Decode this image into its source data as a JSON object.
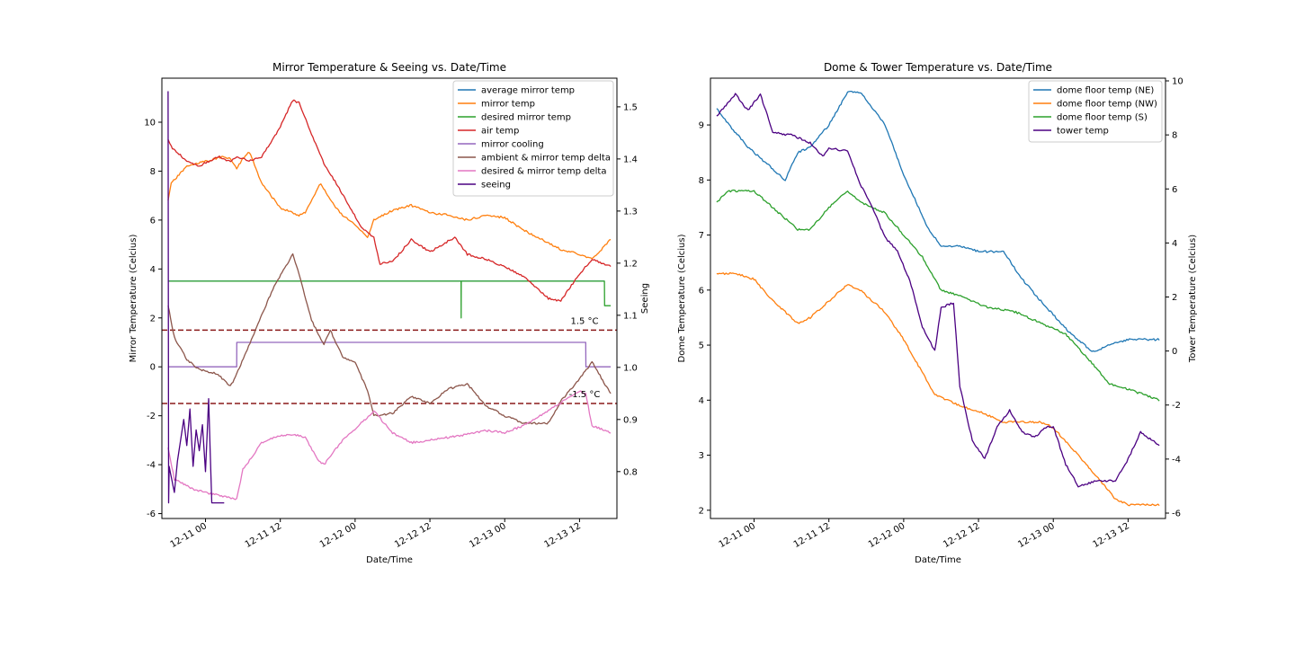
{
  "chart_data": [
    {
      "type": "line",
      "title": "Mirror Temperature & Seeing vs. Date/Time",
      "xlabel": "Date/Time",
      "ylabel": "Mirror Temperature (Celcius)",
      "y2label": "Seeing",
      "x_ticks": [
        "12-11 00",
        "12-11 12",
        "12-12 00",
        "12-12 12",
        "12-13 00",
        "12-13 12"
      ],
      "x_range": [
        "2022-12-10 17:00",
        "2022-12-13 18:00"
      ],
      "ylim": [
        -6.2,
        11.8
      ],
      "y_ticks": [
        -6,
        -4,
        -2,
        0,
        2,
        4,
        6,
        8,
        10
      ],
      "y2lim": [
        0.71,
        1.555
      ],
      "y2_ticks": [
        0.8,
        0.9,
        1.0,
        1.1,
        1.2,
        1.3,
        1.4,
        1.5
      ],
      "legend_position": "top-right",
      "series": [
        {
          "name": "average mirror temp",
          "color": "#1f77b4",
          "axis": "left",
          "x": [
            "2022-12-10 18:00",
            "2022-12-13 16:00"
          ],
          "y": [
            3.5,
            3.5
          ]
        },
        {
          "name": "mirror temp",
          "color": "#ff7f0e",
          "axis": "left",
          "x": [
            "2022-12-10 18:00",
            "2022-12-10 18:30",
            "2022-12-10 21:00",
            "2022-12-11 00:00",
            "2022-12-11 03:00",
            "2022-12-11 04:00",
            "2022-12-11 05:00",
            "2022-12-11 06:00",
            "2022-12-11 07:00",
            "2022-12-11 09:00",
            "2022-12-11 12:00",
            "2022-12-11 15:00",
            "2022-12-11 16:00",
            "2022-12-11 18:00",
            "2022-12-11 18:30",
            "2022-12-11 20:00",
            "2022-12-11 22:00",
            "2022-12-12 00:00",
            "2022-12-12 02:00",
            "2022-12-12 03:00",
            "2022-12-12 06:00",
            "2022-12-12 09:00",
            "2022-12-12 12:00",
            "2022-12-12 15:00",
            "2022-12-12 18:00",
            "2022-12-12 21:00",
            "2022-12-13 00:00",
            "2022-12-13 03:00",
            "2022-12-13 06:00",
            "2022-12-13 09:00",
            "2022-12-13 12:00",
            "2022-12-13 14:00",
            "2022-12-13 17:00"
          ],
          "y": [
            6.8,
            7.5,
            8.2,
            8.4,
            8.6,
            8.5,
            8.1,
            8.5,
            8.8,
            7.5,
            6.5,
            6.2,
            6.3,
            7.3,
            7.5,
            6.8,
            6.2,
            5.8,
            5.3,
            6.0,
            6.4,
            6.6,
            6.3,
            6.2,
            6.0,
            6.2,
            6.1,
            5.6,
            5.2,
            4.8,
            4.6,
            4.4,
            5.2
          ]
        },
        {
          "name": "desired mirror temp",
          "color": "#2ca02c",
          "axis": "left",
          "x": [
            "2022-12-10 18:00",
            "2022-12-12 17:00",
            "2022-12-12 17:01",
            "2022-12-12 17:02",
            "2022-12-13 16:00",
            "2022-12-13 16:01",
            "2022-12-13 17:00"
          ],
          "y": [
            3.5,
            3.5,
            2.0,
            3.5,
            3.5,
            2.5,
            2.5
          ]
        },
        {
          "name": "air temp",
          "color": "#d62728",
          "axis": "left",
          "x": [
            "2022-12-10 18:00",
            "2022-12-10 18:30",
            "2022-12-10 21:00",
            "2022-12-10 23:00",
            "2022-12-11 02:00",
            "2022-12-11 04:00",
            "2022-12-11 05:00",
            "2022-12-11 07:00",
            "2022-12-11 09:00",
            "2022-12-11 12:00",
            "2022-12-11 14:00",
            "2022-12-11 15:00",
            "2022-12-11 17:00",
            "2022-12-11 19:00",
            "2022-12-11 21:00",
            "2022-12-11 23:00",
            "2022-12-12 01:00",
            "2022-12-12 03:00",
            "2022-12-12 04:00",
            "2022-12-12 06:00",
            "2022-12-12 09:00",
            "2022-12-12 12:00",
            "2022-12-12 16:00",
            "2022-12-12 18:00",
            "2022-12-12 21:00",
            "2022-12-13 00:00",
            "2022-12-13 03:00",
            "2022-12-13 07:00",
            "2022-12-13 09:00",
            "2022-12-13 12:00",
            "2022-12-13 14:00",
            "2022-12-13 17:00"
          ],
          "y": [
            9.3,
            9.0,
            8.4,
            8.2,
            8.6,
            8.4,
            8.6,
            8.4,
            8.6,
            9.8,
            10.9,
            10.8,
            9.5,
            8.3,
            7.5,
            6.6,
            5.7,
            5.3,
            4.2,
            4.3,
            5.2,
            4.7,
            5.3,
            4.6,
            4.4,
            4.1,
            3.7,
            2.8,
            2.7,
            3.8,
            4.4,
            4.1
          ]
        },
        {
          "name": "mirror cooling",
          "color": "#9467bd",
          "axis": "left",
          "x": [
            "2022-12-10 18:00",
            "2022-12-11 05:00",
            "2022-12-11 05:01",
            "2022-12-13 13:00",
            "2022-12-13 13:01",
            "2022-12-13 17:00"
          ],
          "y": [
            0,
            0,
            1,
            1,
            0,
            0
          ]
        },
        {
          "name": "ambient & mirror temp delta",
          "color": "#8c564b",
          "axis": "left",
          "x": [
            "2022-12-10 18:00",
            "2022-12-10 19:00",
            "2022-12-10 21:00",
            "2022-12-10 23:00",
            "2022-12-11 02:00",
            "2022-12-11 04:00",
            "2022-12-11 05:00",
            "2022-12-11 08:00",
            "2022-12-11 11:00",
            "2022-12-11 14:00",
            "2022-12-11 15:00",
            "2022-12-11 17:00",
            "2022-12-11 19:00",
            "2022-12-11 20:00",
            "2022-12-11 22:00",
            "2022-12-12 00:00",
            "2022-12-12 02:00",
            "2022-12-12 03:00",
            "2022-12-12 06:00",
            "2022-12-12 09:00",
            "2022-12-12 12:00",
            "2022-12-12 15:00",
            "2022-12-12 18:00",
            "2022-12-12 21:00",
            "2022-12-13 00:00",
            "2022-12-13 03:00",
            "2022-12-13 07:00",
            "2022-12-13 09:00",
            "2022-12-13 12:00",
            "2022-12-13 14:00",
            "2022-12-13 17:00"
          ],
          "y": [
            2.5,
            1.2,
            0.3,
            -0.1,
            -0.3,
            -0.8,
            -0.3,
            1.5,
            3.3,
            4.6,
            3.8,
            1.9,
            0.9,
            1.5,
            0.4,
            0.2,
            -1.0,
            -2.0,
            -1.9,
            -1.2,
            -1.5,
            -0.9,
            -0.7,
            -1.6,
            -2.0,
            -2.3,
            -2.3,
            -1.4,
            -0.5,
            0.2,
            -1.1
          ]
        },
        {
          "name": "desired & mirror temp delta",
          "color": "#e377c2",
          "axis": "left",
          "x": [
            "2022-12-10 18:00",
            "2022-12-10 19:00",
            "2022-12-10 22:00",
            "2022-12-11 01:00",
            "2022-12-11 03:00",
            "2022-12-11 05:00",
            "2022-12-11 06:00",
            "2022-12-11 09:00",
            "2022-12-11 12:00",
            "2022-12-11 15:00",
            "2022-12-11 16:00",
            "2022-12-11 18:00",
            "2022-12-11 19:00",
            "2022-12-11 22:00",
            "2022-12-12 01:00",
            "2022-12-12 03:00",
            "2022-12-12 06:00",
            "2022-12-12 09:00",
            "2022-12-12 12:00",
            "2022-12-12 17:00",
            "2022-12-12 21:00",
            "2022-12-13 00:00",
            "2022-12-13 03:00",
            "2022-12-13 07:00",
            "2022-12-13 10:00",
            "2022-12-13 12:00",
            "2022-12-13 13:00",
            "2022-12-13 14:00",
            "2022-12-13 17:00"
          ],
          "y": [
            -3.3,
            -4.6,
            -5.0,
            -5.2,
            -5.3,
            -5.4,
            -4.2,
            -3.1,
            -2.8,
            -2.8,
            -2.9,
            -3.8,
            -4.0,
            -3.0,
            -2.3,
            -1.8,
            -2.7,
            -3.1,
            -3.0,
            -2.8,
            -2.6,
            -2.7,
            -2.4,
            -1.8,
            -1.3,
            -1.0,
            -1.1,
            -2.4,
            -2.7
          ]
        },
        {
          "name": "seeing",
          "color": "#4b0082",
          "axis": "right",
          "x": [
            "2022-12-10 18:00",
            "2022-12-10 18:05",
            "2022-12-10 18:10",
            "2022-12-10 19:00",
            "2022-12-10 19:30",
            "2022-12-10 20:30",
            "2022-12-10 21:00",
            "2022-12-10 21:30",
            "2022-12-10 22:00",
            "2022-12-10 22:30",
            "2022-12-10 23:00",
            "2022-12-10 23:30",
            "2022-12-11 00:00",
            "2022-12-11 00:30",
            "2022-12-11 01:00",
            "2022-12-11 01:30",
            "2022-12-11 02:00",
            "2022-12-11 03:00"
          ],
          "y": [
            1.53,
            0.74,
            0.81,
            0.76,
            0.82,
            0.9,
            0.85,
            0.92,
            0.81,
            0.88,
            0.84,
            0.89,
            0.8,
            0.94,
            0.74,
            0.74,
            0.74,
            0.74
          ]
        }
      ],
      "annotations": [
        {
          "text": "1.5 °C",
          "y": 1.5,
          "line_color": "#8b1a1a"
        },
        {
          "text": "-1.5 °C",
          "y": -1.5,
          "line_color": "#8b1a1a"
        }
      ]
    },
    {
      "type": "line",
      "title": "Dome & Tower Temperature vs. Date/Time",
      "xlabel": "Date/Time",
      "ylabel": "Dome Temperature (Celcius)",
      "y2label": "Tower Temperature (Celcius)",
      "x_ticks": [
        "12-11 00",
        "12-11 12",
        "12-12 00",
        "12-12 12",
        "12-13 00",
        "12-13 12"
      ],
      "x_range": [
        "2022-12-10 17:00",
        "2022-12-13 18:00"
      ],
      "ylim": [
        1.85,
        9.85
      ],
      "y_ticks": [
        2,
        3,
        4,
        5,
        6,
        7,
        8,
        9
      ],
      "y2lim": [
        -6.2,
        10.1
      ],
      "y2_ticks": [
        -6,
        -4,
        -2,
        0,
        2,
        4,
        6,
        8,
        10
      ],
      "legend_position": "top-right",
      "series": [
        {
          "name": "dome floor temp (NE)",
          "color": "#1f77b4",
          "axis": "left",
          "x": [
            "2022-12-10 18:00",
            "2022-12-10 20:00",
            "2022-12-10 23:00",
            "2022-12-11 03:00",
            "2022-12-11 05:00",
            "2022-12-11 07:00",
            "2022-12-11 09:00",
            "2022-12-11 12:00",
            "2022-12-11 15:00",
            "2022-12-11 17:00",
            "2022-12-11 21:00",
            "2022-12-12 00:00",
            "2022-12-12 04:00",
            "2022-12-12 06:00",
            "2022-12-12 09:00",
            "2022-12-12 12:00",
            "2022-12-12 16:00",
            "2022-12-12 19:00",
            "2022-12-12 22:00",
            "2022-12-13 02:00",
            "2022-12-13 06:00",
            "2022-12-13 07:00",
            "2022-12-13 09:00",
            "2022-12-13 12:00",
            "2022-12-13 17:00"
          ],
          "y": [
            9.3,
            9.0,
            8.6,
            8.2,
            8.0,
            8.5,
            8.6,
            9.0,
            9.6,
            9.6,
            9.0,
            8.1,
            7.1,
            6.8,
            6.8,
            6.7,
            6.7,
            6.2,
            5.8,
            5.3,
            4.9,
            4.9,
            5.0,
            5.1,
            5.1
          ]
        },
        {
          "name": "dome floor temp (NW)",
          "color": "#ff7f0e",
          "axis": "left",
          "x": [
            "2022-12-10 18:00",
            "2022-12-10 21:00",
            "2022-12-11 00:00",
            "2022-12-11 03:00",
            "2022-12-11 07:00",
            "2022-12-11 09:00",
            "2022-12-11 12:00",
            "2022-12-11 15:00",
            "2022-12-11 17:00",
            "2022-12-11 21:00",
            "2022-12-12 00:00",
            "2022-12-12 03:00",
            "2022-12-12 05:00",
            "2022-12-12 09:00",
            "2022-12-12 12:00",
            "2022-12-12 16:00",
            "2022-12-12 22:00",
            "2022-12-13 00:00",
            "2022-12-13 04:00",
            "2022-12-13 07:00",
            "2022-12-13 10:00",
            "2022-12-13 12:00",
            "2022-12-13 17:00"
          ],
          "y": [
            6.3,
            6.3,
            6.2,
            5.8,
            5.4,
            5.5,
            5.8,
            6.1,
            6.0,
            5.6,
            5.1,
            4.5,
            4.1,
            3.9,
            3.8,
            3.6,
            3.6,
            3.5,
            3.0,
            2.6,
            2.2,
            2.1,
            2.1
          ]
        },
        {
          "name": "dome floor temp (S)",
          "color": "#2ca02c",
          "axis": "left",
          "x": [
            "2022-12-10 18:00",
            "2022-12-10 20:00",
            "2022-12-11 00:00",
            "2022-12-11 03:00",
            "2022-12-11 07:00",
            "2022-12-11 09:00",
            "2022-12-11 12:00",
            "2022-12-11 15:00",
            "2022-12-11 17:00",
            "2022-12-11 21:00",
            "2022-12-12 00:00",
            "2022-12-12 03:00",
            "2022-12-12 06:00",
            "2022-12-12 09:00",
            "2022-12-12 13:00",
            "2022-12-12 18:00",
            "2022-12-12 22:00",
            "2022-12-13 02:00",
            "2022-12-13 06:00",
            "2022-12-13 09:00",
            "2022-12-13 12:00",
            "2022-12-13 17:00"
          ],
          "y": [
            7.6,
            7.8,
            7.8,
            7.5,
            7.1,
            7.1,
            7.5,
            7.8,
            7.6,
            7.4,
            7.0,
            6.6,
            6.0,
            5.9,
            5.7,
            5.6,
            5.4,
            5.2,
            4.7,
            4.3,
            4.2,
            4.0
          ]
        },
        {
          "name": "tower temp",
          "color": "#4b0082",
          "axis": "right",
          "x": [
            "2022-12-10 18:00",
            "2022-12-10 21:00",
            "2022-12-10 23:00",
            "2022-12-11 01:00",
            "2022-12-11 03:00",
            "2022-12-11 05:00",
            "2022-12-11 06:00",
            "2022-12-11 09:00",
            "2022-12-11 11:00",
            "2022-12-11 12:00",
            "2022-12-11 15:00",
            "2022-12-11 17:00",
            "2022-12-11 19:00",
            "2022-12-11 21:00",
            "2022-12-11 23:00",
            "2022-12-12 01:00",
            "2022-12-12 03:00",
            "2022-12-12 05:00",
            "2022-12-12 06:00",
            "2022-12-12 08:00",
            "2022-12-12 09:00",
            "2022-12-12 11:00",
            "2022-12-12 13:00",
            "2022-12-12 15:00",
            "2022-12-12 17:00",
            "2022-12-12 19:00",
            "2022-12-12 21:00",
            "2022-12-12 23:00",
            "2022-12-13 00:00",
            "2022-12-13 02:00",
            "2022-12-13 04:00",
            "2022-12-13 07:00",
            "2022-12-13 10:00",
            "2022-12-13 12:00",
            "2022-12-13 14:00",
            "2022-12-13 17:00"
          ],
          "y": [
            8.7,
            9.5,
            8.9,
            9.5,
            8.1,
            8.0,
            8.0,
            7.7,
            7.2,
            7.5,
            7.4,
            6.2,
            5.3,
            4.2,
            3.7,
            2.6,
            0.9,
            0.0,
            1.6,
            1.8,
            -1.3,
            -3.3,
            -4.0,
            -2.8,
            -2.2,
            -3.0,
            -3.2,
            -2.8,
            -2.8,
            -4.2,
            -5.0,
            -4.8,
            -4.8,
            -4.0,
            -3.0,
            -3.5
          ]
        }
      ]
    }
  ]
}
